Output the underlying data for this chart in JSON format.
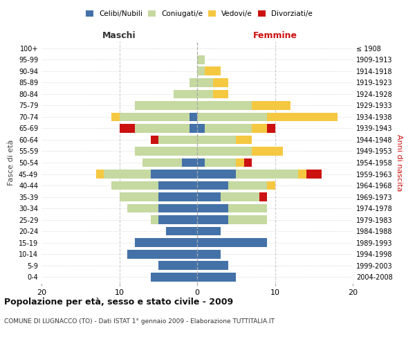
{
  "age_groups": [
    "0-4",
    "5-9",
    "10-14",
    "15-19",
    "20-24",
    "25-29",
    "30-34",
    "35-39",
    "40-44",
    "45-49",
    "50-54",
    "55-59",
    "60-64",
    "65-69",
    "70-74",
    "75-79",
    "80-84",
    "85-89",
    "90-94",
    "95-99",
    "100+"
  ],
  "birth_years": [
    "2004-2008",
    "1999-2003",
    "1994-1998",
    "1989-1993",
    "1984-1988",
    "1979-1983",
    "1974-1978",
    "1969-1973",
    "1964-1968",
    "1959-1963",
    "1954-1958",
    "1949-1953",
    "1944-1948",
    "1939-1943",
    "1934-1938",
    "1929-1933",
    "1924-1928",
    "1919-1923",
    "1914-1918",
    "1909-1913",
    "≤ 1908"
  ],
  "maschi": {
    "celibi": [
      6,
      5,
      9,
      8,
      4,
      5,
      5,
      5,
      5,
      6,
      2,
      0,
      0,
      1,
      1,
      0,
      0,
      0,
      0,
      0,
      0
    ],
    "coniugati": [
      0,
      0,
      0,
      0,
      0,
      1,
      4,
      5,
      6,
      6,
      5,
      8,
      5,
      7,
      9,
      8,
      3,
      1,
      0,
      0,
      0
    ],
    "vedovi": [
      0,
      0,
      0,
      0,
      0,
      0,
      0,
      0,
      0,
      1,
      0,
      0,
      0,
      0,
      1,
      0,
      0,
      0,
      0,
      0,
      0
    ],
    "divorziati": [
      0,
      0,
      0,
      0,
      0,
      0,
      0,
      0,
      0,
      0,
      0,
      0,
      1,
      2,
      0,
      0,
      0,
      0,
      0,
      0,
      0
    ]
  },
  "femmine": {
    "nubili": [
      5,
      4,
      3,
      9,
      3,
      4,
      4,
      3,
      4,
      5,
      1,
      0,
      0,
      1,
      0,
      0,
      0,
      0,
      0,
      0,
      0
    ],
    "coniugate": [
      0,
      0,
      0,
      0,
      0,
      5,
      5,
      5,
      5,
      8,
      4,
      7,
      5,
      6,
      9,
      7,
      2,
      2,
      1,
      1,
      0
    ],
    "vedove": [
      0,
      0,
      0,
      0,
      0,
      0,
      0,
      0,
      1,
      1,
      1,
      4,
      2,
      2,
      9,
      5,
      2,
      2,
      2,
      0,
      0
    ],
    "divorziate": [
      0,
      0,
      0,
      0,
      0,
      0,
      0,
      1,
      0,
      2,
      1,
      0,
      0,
      1,
      0,
      0,
      0,
      0,
      0,
      0,
      0
    ]
  },
  "colors": {
    "celibi": "#4472a8",
    "coniugati": "#c5d9a0",
    "vedovi": "#f5c842",
    "divorziati": "#cc1111"
  },
  "title": "Popolazione per età, sesso e stato civile - 2009",
  "subtitle": "COMUNE DI LUGNACCO (TO) - Dati ISTAT 1° gennaio 2009 - Elaborazione TUTTITALIA.IT",
  "xlabel_left": "Maschi",
  "xlabel_right": "Femmine",
  "ylabel_left": "Fasce di età",
  "ylabel_right": "Anni di nascita",
  "xlim": 20,
  "bg_color": "#ffffff",
  "grid_color": "#cccccc",
  "legend_labels": [
    "Celibi/Nubili",
    "Coniugati/e",
    "Vedovi/e",
    "Divorziati/e"
  ]
}
